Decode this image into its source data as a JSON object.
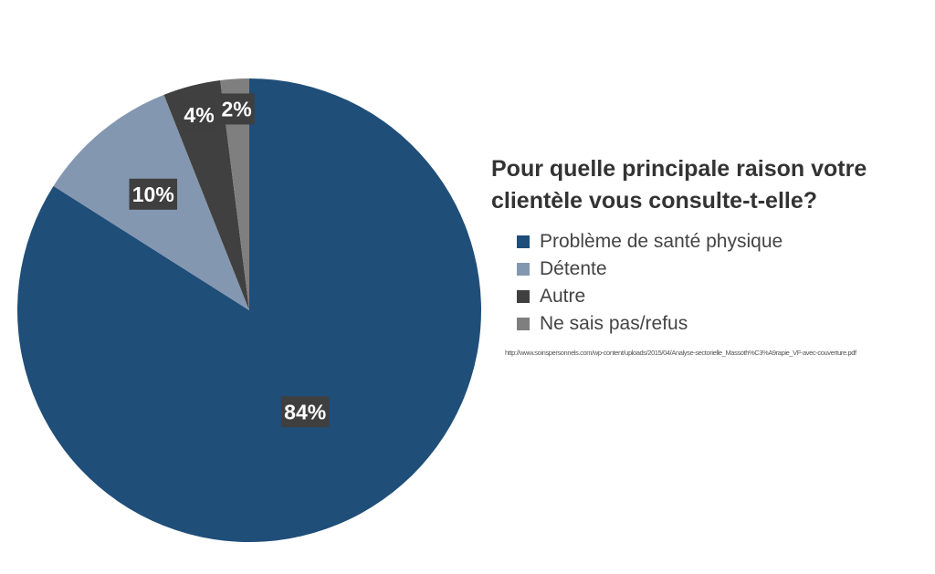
{
  "chart_data": {
    "type": "pie",
    "title": "Pour quelle principale raison votre clientèle vous consulte-t-elle?",
    "slices": [
      {
        "label": "Problème de santé physique",
        "value": 84,
        "display": "84%",
        "color": "#1f4e79"
      },
      {
        "label": "Détente",
        "value": 10,
        "display": "10%",
        "color": "#8497b0"
      },
      {
        "label": "Autre",
        "value": 4,
        "display": "4%",
        "color": "#404040"
      },
      {
        "label": "Ne sais pas/refus",
        "value": 2,
        "display": "2%",
        "color": "#7f7f7f"
      }
    ],
    "start": "top, 12 o'clock",
    "direction": "clockwise",
    "legend_position": "right",
    "source": "http://www.soinspersonnels.com/wp-content/uploads/2015/04/Analyse-sectorielle_Massoth%C3%A9rapie_VF-avec-couverture.pdf"
  }
}
